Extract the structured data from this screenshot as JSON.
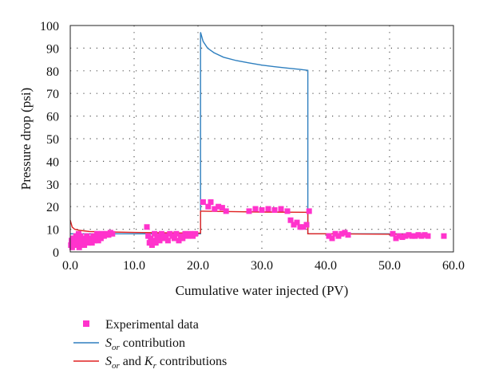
{
  "chart_data": {
    "type": "line",
    "xlabel": "Cumulative water injected (PV)",
    "ylabel": "Pressure drop (psi)",
    "xlim": [
      0,
      60
    ],
    "ylim": [
      0,
      100
    ],
    "grid": true,
    "legend_placement": "bottom-left",
    "x_ticks": [
      "0.0",
      "10.0",
      "20.0",
      "30.0",
      "40.0",
      "50.0",
      "60.0"
    ],
    "y_ticks": [
      "0",
      "10",
      "20",
      "30",
      "40",
      "50",
      "60",
      "70",
      "80",
      "90",
      "100"
    ],
    "colors": {
      "experimental": "#ff33cc",
      "sor": "#2e7fbf",
      "sor_kr": "#e02020",
      "grid": "#555555"
    },
    "legend": {
      "experimental": "Experimental data",
      "sor_symbol": "S",
      "sor_sub": "or",
      "sor_text": " contribution",
      "sor_kr_symbol1": "S",
      "sor_kr_sub1": "or",
      "sor_kr_and": " and ",
      "sor_kr_symbol2": "K",
      "sor_kr_sub2": "r",
      "sor_kr_text": " contributions"
    },
    "series": [
      {
        "name": "S_or contribution",
        "type": "line",
        "color": "#2e7fbf",
        "points": [
          [
            0,
            8
          ],
          [
            20.4,
            8
          ],
          [
            20.4,
            97
          ],
          [
            20.8,
            93
          ],
          [
            21.5,
            90
          ],
          [
            22.5,
            88
          ],
          [
            24,
            86
          ],
          [
            26,
            84.5
          ],
          [
            28,
            83.5
          ],
          [
            30,
            82.5
          ],
          [
            32,
            81.8
          ],
          [
            34,
            81.2
          ],
          [
            36,
            80.6
          ],
          [
            37.2,
            80.2
          ],
          [
            37.2,
            8
          ],
          [
            40,
            8
          ],
          [
            50,
            8
          ],
          [
            56,
            8
          ]
        ]
      },
      {
        "name": "S_or and K_r contributions",
        "type": "line",
        "color": "#e02020",
        "points": [
          [
            0,
            14
          ],
          [
            0.3,
            11
          ],
          [
            0.7,
            10
          ],
          [
            1.5,
            9.5
          ],
          [
            3,
            9
          ],
          [
            6,
            8.8
          ],
          [
            10,
            8.6
          ],
          [
            15,
            8.4
          ],
          [
            20.4,
            8.3
          ],
          [
            20.4,
            18
          ],
          [
            25,
            17.8
          ],
          [
            30,
            17.6
          ],
          [
            37.2,
            17.5
          ],
          [
            37.2,
            8
          ],
          [
            40,
            8
          ],
          [
            45,
            7.9
          ],
          [
            50,
            7.8
          ],
          [
            56,
            7.8
          ]
        ]
      },
      {
        "name": "Experimental data",
        "type": "scatter",
        "color": "#ff33cc",
        "points": [
          [
            0.1,
            3
          ],
          [
            0.2,
            5
          ],
          [
            0.3,
            2
          ],
          [
            0.4,
            4
          ],
          [
            0.5,
            6
          ],
          [
            0.6,
            3
          ],
          [
            0.7,
            5
          ],
          [
            0.8,
            4
          ],
          [
            0.9,
            7
          ],
          [
            1.0,
            3
          ],
          [
            1.1,
            6
          ],
          [
            1.2,
            4
          ],
          [
            1.3,
            8
          ],
          [
            1.4,
            2
          ],
          [
            1.5,
            5
          ],
          [
            1.6,
            7
          ],
          [
            1.8,
            4
          ],
          [
            2.0,
            6
          ],
          [
            2.2,
            3
          ],
          [
            2.4,
            5
          ],
          [
            2.6,
            7
          ],
          [
            2.8,
            4
          ],
          [
            3.0,
            6
          ],
          [
            3.2,
            5
          ],
          [
            3.4,
            4
          ],
          [
            3.6,
            7
          ],
          [
            3.8,
            5
          ],
          [
            4.0,
            6
          ],
          [
            4.2,
            8
          ],
          [
            4.4,
            5
          ],
          [
            4.6,
            7
          ],
          [
            4.8,
            6
          ],
          [
            5.0,
            8
          ],
          [
            5.3,
            7
          ],
          [
            5.6,
            8
          ],
          [
            6.0,
            7.5
          ],
          [
            6.3,
            8.5
          ],
          [
            6.6,
            8
          ],
          [
            12.0,
            11
          ],
          [
            12.2,
            7
          ],
          [
            12.4,
            4
          ],
          [
            12.6,
            6
          ],
          [
            12.8,
            3
          ],
          [
            13.0,
            5
          ],
          [
            13.2,
            8
          ],
          [
            13.4,
            4
          ],
          [
            13.6,
            6
          ],
          [
            13.8,
            7
          ],
          [
            14.0,
            5
          ],
          [
            14.3,
            8
          ],
          [
            14.6,
            6
          ],
          [
            15.0,
            7
          ],
          [
            15.3,
            5
          ],
          [
            15.6,
            8
          ],
          [
            16.0,
            7
          ],
          [
            16.3,
            6
          ],
          [
            16.6,
            8
          ],
          [
            17.0,
            5
          ],
          [
            17.3,
            7
          ],
          [
            17.6,
            6
          ],
          [
            18.0,
            8
          ],
          [
            18.4,
            7
          ],
          [
            18.8,
            8
          ],
          [
            19.2,
            7
          ],
          [
            19.6,
            8
          ],
          [
            20.8,
            22
          ],
          [
            21.6,
            20
          ],
          [
            22.0,
            22
          ],
          [
            22.6,
            19
          ],
          [
            23.2,
            20
          ],
          [
            23.8,
            19.5
          ],
          [
            24.4,
            18
          ],
          [
            28.0,
            18
          ],
          [
            29.0,
            19
          ],
          [
            30.0,
            18.5
          ],
          [
            31.0,
            19
          ],
          [
            32.0,
            18.5
          ],
          [
            33.0,
            19
          ],
          [
            34.0,
            18
          ],
          [
            34.5,
            14
          ],
          [
            35.0,
            12
          ],
          [
            35.5,
            13
          ],
          [
            36.0,
            11
          ],
          [
            36.5,
            11
          ],
          [
            37.0,
            12
          ],
          [
            37.4,
            18
          ],
          [
            40.5,
            7
          ],
          [
            41.0,
            6
          ],
          [
            41.5,
            8
          ],
          [
            42.0,
            7
          ],
          [
            42.5,
            8
          ],
          [
            43.0,
            8.5
          ],
          [
            43.5,
            7.5
          ],
          [
            50.5,
            8
          ],
          [
            51.0,
            6
          ],
          [
            51.5,
            7
          ],
          [
            52.0,
            6.5
          ],
          [
            52.5,
            7
          ],
          [
            53.0,
            7.5
          ],
          [
            53.5,
            7
          ],
          [
            54.0,
            7
          ],
          [
            54.5,
            7.5
          ],
          [
            55.0,
            7
          ],
          [
            55.5,
            7.5
          ],
          [
            56.0,
            7
          ],
          [
            58.5,
            7
          ]
        ]
      }
    ]
  }
}
